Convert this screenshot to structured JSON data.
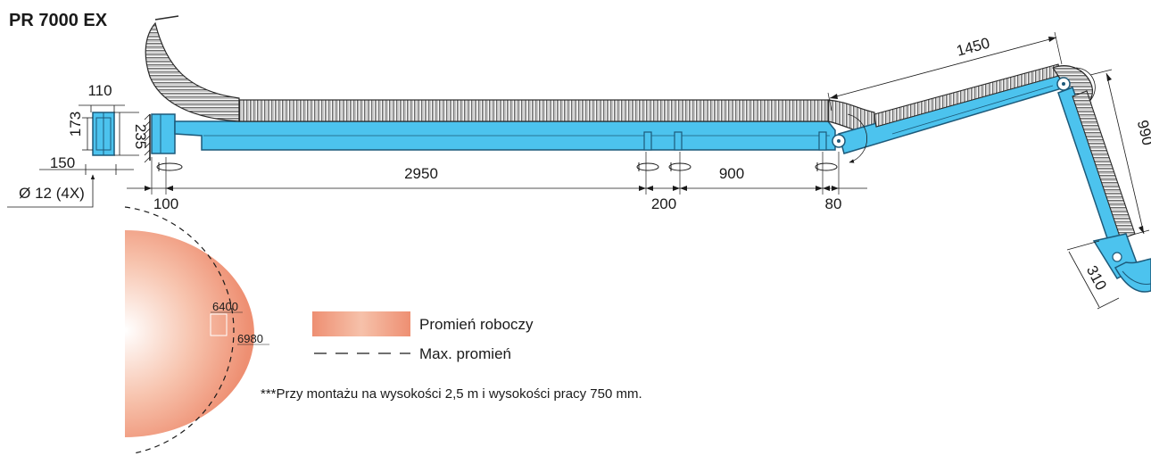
{
  "title": "PR 7000 EX",
  "mount_dims": {
    "width_top": "110",
    "height_inner": "173",
    "height_outer": "235",
    "width_bottom": "150",
    "hole": "Ø 12 (4X)"
  },
  "arm_dims": {
    "d100": "100",
    "d2950": "2950",
    "d200": "200",
    "d900": "900",
    "d80": "80",
    "d1450": "1450",
    "d990": "990",
    "d310": "310"
  },
  "radius_dims": {
    "working": "6400",
    "max": "6980"
  },
  "legend": {
    "working_radius": "Promień roboczy",
    "max_radius": "Max. promień"
  },
  "note": "***Przy montażu  na wysokości 2,5 m i wysokości pracy 750 mm.",
  "colors": {
    "arm_fill": "#4cc3ee",
    "arm_stroke": "#1d5a7a",
    "working_radius_center": "#ffffff",
    "working_radius_edge": "#ee8f72"
  }
}
